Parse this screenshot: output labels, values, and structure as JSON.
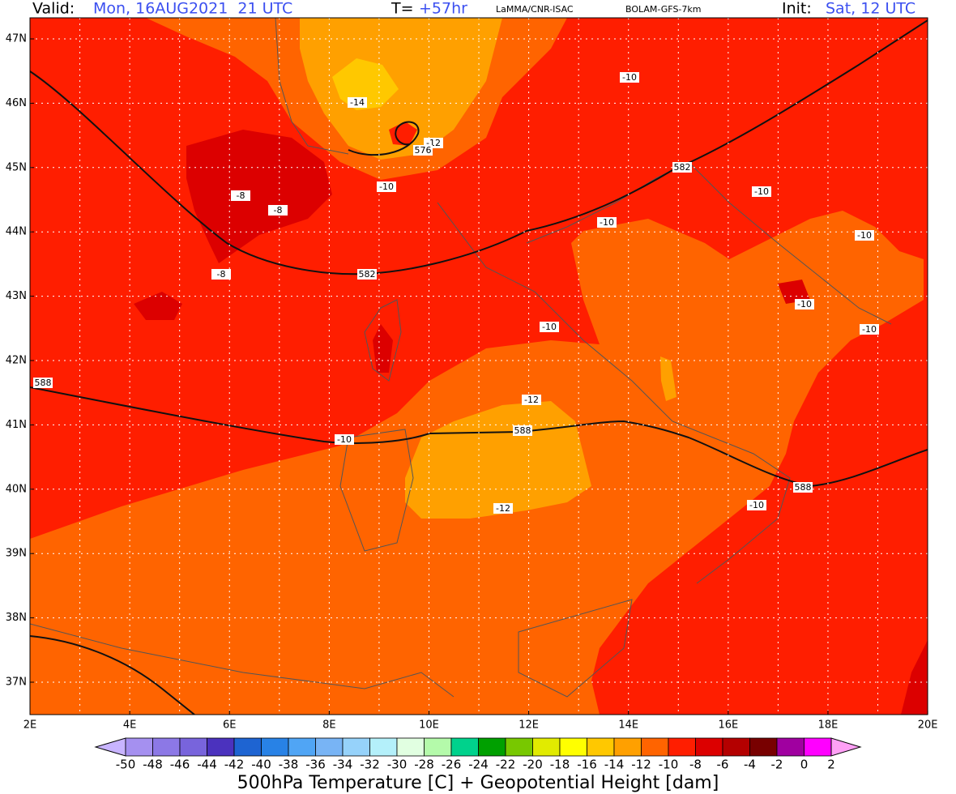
{
  "header": {
    "valid_label": "Valid:",
    "valid_time": "Mon, 16AUG2021  21 UTC",
    "lead_label": "T=",
    "lead_time": "+57hr",
    "credit": "LaMMA/CNR-ISAC",
    "model": "BOLAM-GFS-7km",
    "init_label": "Init:",
    "init_time": "Sat, 12 UTC"
  },
  "map": {
    "lat_labels": [
      "47N",
      "46N",
      "45N",
      "44N",
      "43N",
      "42N",
      "41N",
      "40N",
      "39N",
      "38N",
      "37N"
    ],
    "lon_labels": [
      "2E",
      "4E",
      "6E",
      "8E",
      "10E",
      "12E",
      "14E",
      "16E",
      "18E",
      "20E"
    ],
    "contour_labels": [
      -10,
      -14,
      -12,
      576,
      -10,
      -8,
      -8,
      582,
      -10,
      -10,
      -10,
      -8,
      582,
      -10,
      -10,
      -10,
      588,
      -12,
      588,
      -10,
      588,
      -12,
      -10
    ]
  },
  "colorbar": {
    "labels": [
      -50,
      -48,
      -46,
      -44,
      -42,
      -40,
      -38,
      -36,
      -34,
      -32,
      -30,
      -28,
      -26,
      -24,
      -22,
      -20,
      -18,
      -16,
      -14,
      -12,
      -10,
      -8,
      -6,
      -4,
      -2,
      0,
      2
    ],
    "colors": [
      "#a590f0",
      "#8c78e6",
      "#7864dc",
      "#4b32be",
      "#1e64d2",
      "#2882e6",
      "#50a5f5",
      "#78b4f5",
      "#96d2fa",
      "#b4f0fa",
      "#e1ffe1",
      "#b4faaa",
      "#00d28c",
      "#00a000",
      "#78c800",
      "#e1eb00",
      "#ffff00",
      "#ffc800",
      "#ffa000",
      "#ff6400",
      "#ff1e00",
      "#dc0000",
      "#b40000",
      "#780000",
      "#a000a0",
      "#ff00ff"
    ],
    "under_color": "#c8b4ff",
    "over_color": "#ffa0f5",
    "title": "500hPa Temperature [C] + Geopotential Height [dam]"
  }
}
